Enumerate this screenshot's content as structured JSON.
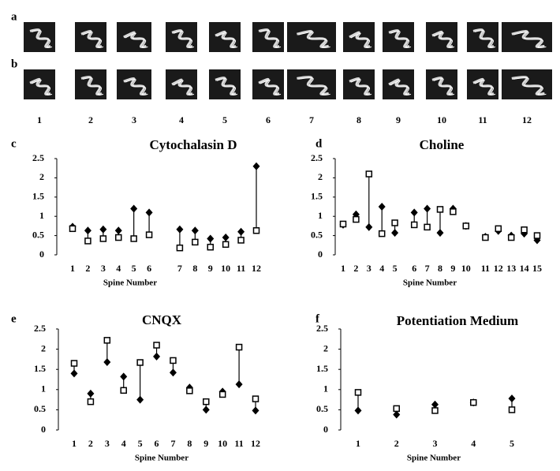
{
  "figure": {
    "row_labels": [
      "a",
      "b"
    ],
    "columns": [
      "1",
      "2",
      "3",
      "4",
      "5",
      "6",
      "7",
      "8",
      "9",
      "10",
      "11",
      "12"
    ]
  },
  "chart_data": [
    {
      "type": "dumbbell",
      "panel_label": "c",
      "title": "Cytochalasin D",
      "x_label": "Spine Number",
      "categories": [
        "1",
        "2",
        "3",
        "4",
        "5",
        "6",
        "7",
        "8",
        "9",
        "10",
        "11",
        "12"
      ],
      "series": [
        {
          "marker": "diamond",
          "color": "#000000",
          "values": [
            0.73,
            0.63,
            0.66,
            0.63,
            1.2,
            1.1,
            0.66,
            0.63,
            0.42,
            0.45,
            0.6,
            2.3
          ]
        },
        {
          "marker": "square",
          "color": "#000000",
          "values": [
            0.68,
            0.36,
            0.42,
            0.45,
            0.42,
            0.52,
            0.18,
            0.33,
            0.2,
            0.27,
            0.38,
            0.63
          ]
        }
      ],
      "ylim": [
        0,
        2.5
      ],
      "yticks": [
        0,
        0.5,
        1,
        1.5,
        2,
        2.5
      ],
      "grid": false
    },
    {
      "type": "dumbbell",
      "panel_label": "d",
      "title": "Choline",
      "x_label": "Spine Number",
      "categories": [
        "1",
        "2",
        "3",
        "4",
        "5",
        "6",
        "7",
        "8",
        "9",
        "10",
        "11",
        "12",
        "13",
        "14",
        "15"
      ],
      "series": [
        {
          "marker": "diamond",
          "color": "#000000",
          "values": [
            0.78,
            1.05,
            0.72,
            1.25,
            0.57,
            1.1,
            1.2,
            0.57,
            1.2,
            0.75,
            0.47,
            0.62,
            0.5,
            0.55,
            0.38
          ]
        },
        {
          "marker": "square",
          "color": "#000000",
          "values": [
            0.8,
            0.92,
            2.1,
            0.55,
            0.83,
            0.78,
            0.72,
            1.18,
            1.12,
            0.75,
            0.45,
            0.68,
            0.45,
            0.65,
            0.5
          ]
        }
      ],
      "ylim": [
        0,
        2.5
      ],
      "yticks": [
        0,
        0.5,
        1,
        1.5,
        2,
        2.5
      ],
      "grid": false
    },
    {
      "type": "dumbbell",
      "panel_label": "e",
      "title": "CNQX",
      "x_label": "Spine Number",
      "categories": [
        "1",
        "2",
        "3",
        "4",
        "5",
        "6",
        "7",
        "8",
        "9",
        "10",
        "11",
        "12"
      ],
      "series": [
        {
          "marker": "diamond",
          "color": "#000000",
          "values": [
            1.4,
            0.9,
            1.68,
            1.32,
            0.75,
            1.82,
            1.42,
            1.05,
            0.5,
            0.95,
            1.13,
            0.48
          ]
        },
        {
          "marker": "square",
          "color": "#000000",
          "values": [
            1.65,
            0.7,
            2.22,
            0.98,
            1.67,
            2.1,
            1.72,
            0.97,
            0.7,
            0.88,
            2.05,
            0.77
          ]
        }
      ],
      "ylim": [
        0,
        2.5
      ],
      "yticks": [
        0,
        0.5,
        1,
        1.5,
        2,
        2.5
      ],
      "grid": false
    },
    {
      "type": "dumbbell",
      "panel_label": "f",
      "title": "Potentiation Medium",
      "x_label": "Spine Number",
      "categories": [
        "1",
        "2",
        "3",
        "4",
        "5"
      ],
      "series": [
        {
          "marker": "diamond",
          "color": "#000000",
          "values": [
            0.48,
            0.38,
            0.63,
            0.68,
            0.78
          ]
        },
        {
          "marker": "square",
          "color": "#000000",
          "values": [
            0.93,
            0.53,
            0.48,
            0.68,
            0.5
          ]
        }
      ],
      "ylim": [
        0,
        2.5
      ],
      "yticks": [
        0,
        0.5,
        1,
        1.5,
        2,
        2.5
      ],
      "grid": false
    }
  ]
}
